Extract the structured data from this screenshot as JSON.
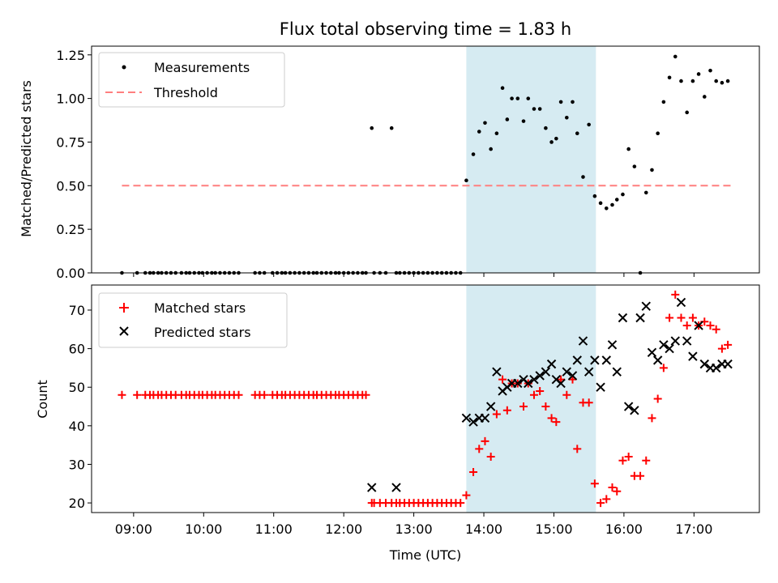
{
  "title": "Flux total observing time = 1.83 h",
  "x_axis_label": "Time (UTC)",
  "x_ticks": [
    "09:00",
    "10:00",
    "11:00",
    "12:00",
    "13:00",
    "14:00",
    "15:00",
    "16:00",
    "17:00"
  ],
  "colors": {
    "measurements": "#000000",
    "threshold": "#ff7f7f",
    "matched": "#ff0000",
    "predicted": "#000000",
    "shade": "#add8e6"
  },
  "chart_data": [
    {
      "type": "scatter",
      "ylabel": "Matched/Predicted stars",
      "ylim": [
        0,
        1.3
      ],
      "y_ticks": [
        "0.00",
        "0.25",
        "0.50",
        "0.75",
        "1.00",
        "1.25"
      ],
      "xlim": [
        "08:24",
        "17:56"
      ],
      "legend": {
        "placement": "top-left",
        "measurements_label": "Measurements",
        "threshold_label": "Threshold"
      },
      "shaded_span": {
        "x0": "13:45",
        "x1": "15:36"
      },
      "threshold": {
        "y": 0.5,
        "x0": "08:50",
        "x1": "17:32"
      },
      "series": [
        {
          "name": "Measurements",
          "x": [
            "08:50",
            "09:03",
            "09:10",
            "09:14",
            "09:17",
            "09:21",
            "09:24",
            "09:28",
            "09:32",
            "09:36",
            "09:41",
            "09:45",
            "09:48",
            "09:52",
            "09:56",
            "09:59",
            "10:03",
            "10:07",
            "10:10",
            "10:14",
            "10:18",
            "10:22",
            "10:26",
            "10:30",
            "10:44",
            "10:48",
            "10:52",
            "10:59",
            "11:03",
            "11:07",
            "11:10",
            "11:14",
            "11:18",
            "11:22",
            "11:26",
            "11:30",
            "11:34",
            "11:37",
            "11:41",
            "11:45",
            "11:49",
            "11:53",
            "11:56",
            "12:00",
            "12:04",
            "12:08",
            "12:12",
            "12:16",
            "12:19",
            "12:24",
            "12:26",
            "12:31",
            "12:36",
            "12:41",
            "12:45",
            "12:48",
            "12:52",
            "12:56",
            "13:00",
            "13:04",
            "13:08",
            "13:12",
            "13:16",
            "13:20",
            "13:24",
            "13:28",
            "13:32",
            "13:36",
            "13:40",
            "13:45",
            "13:51",
            "13:56",
            "14:01",
            "14:06",
            "14:11",
            "14:16",
            "14:20",
            "14:24",
            "14:29",
            "14:34",
            "14:38",
            "14:43",
            "14:48",
            "14:53",
            "14:58",
            "15:02",
            "15:06",
            "15:11",
            "15:16",
            "15:20",
            "15:25",
            "15:30",
            "15:35",
            "15:40",
            "15:45",
            "15:50",
            "15:54",
            "15:59",
            "16:04",
            "16:09",
            "16:14",
            "16:19",
            "16:24",
            "16:29",
            "16:34",
            "16:39",
            "16:44",
            "16:49",
            "16:54",
            "16:59",
            "17:04",
            "17:09",
            "17:14",
            "17:19",
            "17:24",
            "17:29"
          ],
          "y": [
            0,
            0,
            0,
            0,
            0,
            0,
            0,
            0,
            0,
            0,
            0,
            0,
            0,
            0,
            0,
            0,
            0,
            0,
            0,
            0,
            0,
            0,
            0,
            0,
            0,
            0,
            0,
            0,
            0,
            0,
            0,
            0,
            0,
            0,
            0,
            0,
            0,
            0,
            0,
            0,
            0,
            0,
            0,
            0,
            0,
            0,
            0,
            0,
            0,
            0.83,
            0,
            0,
            0,
            0.83,
            0,
            0,
            0,
            0,
            0,
            0,
            0,
            0,
            0,
            0,
            0,
            0,
            0,
            0,
            0,
            0.53,
            0.68,
            0.81,
            0.86,
            0.71,
            0.8,
            1.06,
            0.88,
            1.0,
            1.0,
            0.87,
            1.0,
            0.94,
            0.94,
            0.83,
            0.75,
            0.77,
            0.98,
            0.89,
            0.98,
            0.8,
            0.55,
            0.85,
            0.44,
            0.4,
            0.37,
            0.39,
            0.42,
            0.45,
            0.71,
            0.61,
            0,
            0.46,
            0.59,
            0.8,
            0.98,
            1.12,
            1.24,
            1.1,
            0.92,
            1.1,
            1.14,
            1.01,
            1.16,
            1.1,
            1.09,
            1.1
          ]
        }
      ]
    },
    {
      "type": "scatter",
      "ylabel": "Count",
      "ylim": [
        17.5,
        76.5
      ],
      "y_ticks": [
        "20",
        "30",
        "40",
        "50",
        "60",
        "70"
      ],
      "xlim": [
        "08:24",
        "17:56"
      ],
      "legend": {
        "placement": "top-left"
      },
      "shaded_span": {
        "x0": "13:45",
        "x1": "15:36"
      },
      "series": [
        {
          "name": "Matched stars",
          "x": [
            "08:50",
            "09:03",
            "09:10",
            "09:14",
            "09:17",
            "09:21",
            "09:24",
            "09:28",
            "09:32",
            "09:36",
            "09:41",
            "09:45",
            "09:48",
            "09:52",
            "09:56",
            "09:59",
            "10:03",
            "10:07",
            "10:10",
            "10:14",
            "10:18",
            "10:22",
            "10:26",
            "10:30",
            "10:44",
            "10:48",
            "10:52",
            "10:59",
            "11:03",
            "11:07",
            "11:10",
            "11:14",
            "11:18",
            "11:22",
            "11:26",
            "11:30",
            "11:34",
            "11:37",
            "11:41",
            "11:45",
            "11:49",
            "11:53",
            "11:56",
            "12:00",
            "12:04",
            "12:08",
            "12:12",
            "12:16",
            "12:19",
            "12:24",
            "12:26",
            "12:31",
            "12:36",
            "12:41",
            "12:45",
            "12:48",
            "12:52",
            "12:56",
            "13:00",
            "13:04",
            "13:08",
            "13:12",
            "13:16",
            "13:20",
            "13:24",
            "13:28",
            "13:32",
            "13:36",
            "13:40",
            "13:45",
            "13:51",
            "13:56",
            "14:01",
            "14:06",
            "14:11",
            "14:16",
            "14:20",
            "14:24",
            "14:29",
            "14:34",
            "14:38",
            "14:43",
            "14:48",
            "14:53",
            "14:58",
            "15:02",
            "15:06",
            "15:11",
            "15:16",
            "15:20",
            "15:25",
            "15:30",
            "15:35",
            "15:40",
            "15:45",
            "15:50",
            "15:54",
            "15:59",
            "16:04",
            "16:09",
            "16:14",
            "16:19",
            "16:24",
            "16:29",
            "16:34",
            "16:39",
            "16:44",
            "16:49",
            "16:54",
            "16:59",
            "17:04",
            "17:09",
            "17:14",
            "17:19",
            "17:24",
            "17:29"
          ],
          "y": [
            48,
            48,
            48,
            48,
            48,
            48,
            48,
            48,
            48,
            48,
            48,
            48,
            48,
            48,
            48,
            48,
            48,
            48,
            48,
            48,
            48,
            48,
            48,
            48,
            48,
            48,
            48,
            48,
            48,
            48,
            48,
            48,
            48,
            48,
            48,
            48,
            48,
            48,
            48,
            48,
            48,
            48,
            48,
            48,
            48,
            48,
            48,
            48,
            48,
            20,
            20,
            20,
            20,
            20,
            20,
            20,
            20,
            20,
            20,
            20,
            20,
            20,
            20,
            20,
            20,
            20,
            20,
            20,
            20,
            22,
            28,
            34,
            36,
            32,
            43,
            52,
            44,
            51,
            51,
            45,
            51,
            48,
            49,
            45,
            42,
            41,
            52,
            48,
            52,
            34,
            46,
            46,
            25,
            20,
            21,
            24,
            23,
            31,
            32,
            27,
            27,
            31,
            42,
            47,
            55,
            68,
            74,
            68,
            66,
            68,
            66,
            67,
            66,
            65,
            60,
            61
          ]
        },
        {
          "name": "Predicted stars",
          "x": [
            "12:24",
            "12:45",
            "13:45",
            "13:51",
            "13:56",
            "14:01",
            "14:06",
            "14:11",
            "14:16",
            "14:20",
            "14:24",
            "14:29",
            "14:34",
            "14:38",
            "14:43",
            "14:48",
            "14:53",
            "14:58",
            "15:02",
            "15:06",
            "15:11",
            "15:16",
            "15:20",
            "15:25",
            "15:30",
            "15:35",
            "15:40",
            "15:45",
            "15:50",
            "15:54",
            "15:59",
            "16:04",
            "16:09",
            "16:14",
            "16:19",
            "16:24",
            "16:29",
            "16:34",
            "16:39",
            "16:44",
            "16:49",
            "16:54",
            "16:59",
            "17:04",
            "17:09",
            "17:14",
            "17:19",
            "17:24",
            "17:29"
          ],
          "y": [
            24,
            24,
            42,
            41,
            42,
            42,
            45,
            54,
            49,
            50,
            51,
            51,
            52,
            51,
            52,
            53,
            54,
            56,
            52,
            51,
            54,
            53,
            57,
            62,
            54,
            57,
            50,
            57,
            61,
            54,
            68,
            45,
            44,
            68,
            71,
            59,
            57,
            61,
            60,
            62,
            72,
            62,
            58,
            66,
            56,
            55,
            55,
            56,
            56
          ]
        }
      ]
    }
  ]
}
